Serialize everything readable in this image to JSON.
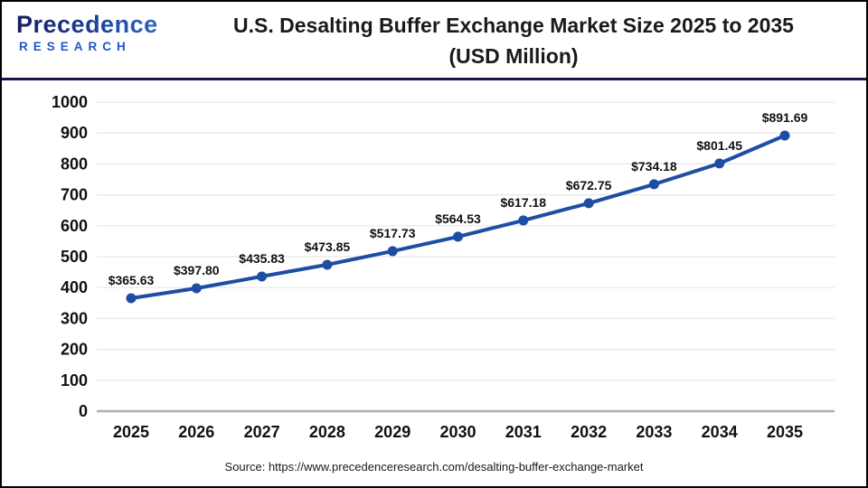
{
  "header": {
    "logo": {
      "brand": "Precedence",
      "sub": "RESEARCH"
    },
    "title_line1": "U.S. Desalting Buffer Exchange Market Size 2025 to 2035",
    "title_line2": "(USD Million)"
  },
  "chart_data": {
    "type": "line",
    "title": "U.S. Desalting Buffer Exchange Market Size 2025 to 2035 (USD Million)",
    "categories": [
      "2025",
      "2026",
      "2027",
      "2028",
      "2029",
      "2030",
      "2031",
      "2032",
      "2033",
      "2034",
      "2035"
    ],
    "values": [
      365.63,
      397.8,
      435.83,
      473.85,
      517.73,
      564.53,
      617.18,
      672.75,
      734.18,
      801.45,
      891.69
    ],
    "point_labels": [
      "$365.63",
      "$397.80",
      "$435.83",
      "$473.85",
      "$517.73",
      "$564.53",
      "$617.18",
      "$672.75",
      "$734.18",
      "$801.45",
      "$891.69"
    ],
    "xlabel": "",
    "ylabel": "",
    "ylim": [
      0,
      1000
    ],
    "ytick_interval": 100,
    "grid": true,
    "legend": "none",
    "line_color": "#1e4da4",
    "marker": "circle",
    "grid_color": "#e7e7e7",
    "axis_color": "#b0b0b0",
    "text_color": "#111111"
  },
  "footer": {
    "source": "Source: https://www.precedenceresearch.com/desalting-buffer-exchange-market"
  },
  "colors": {
    "header_divider": "#17174b",
    "logo_navy": "#161f60",
    "logo_blue": "#2e79d8",
    "research_blue": "#2156c8"
  }
}
